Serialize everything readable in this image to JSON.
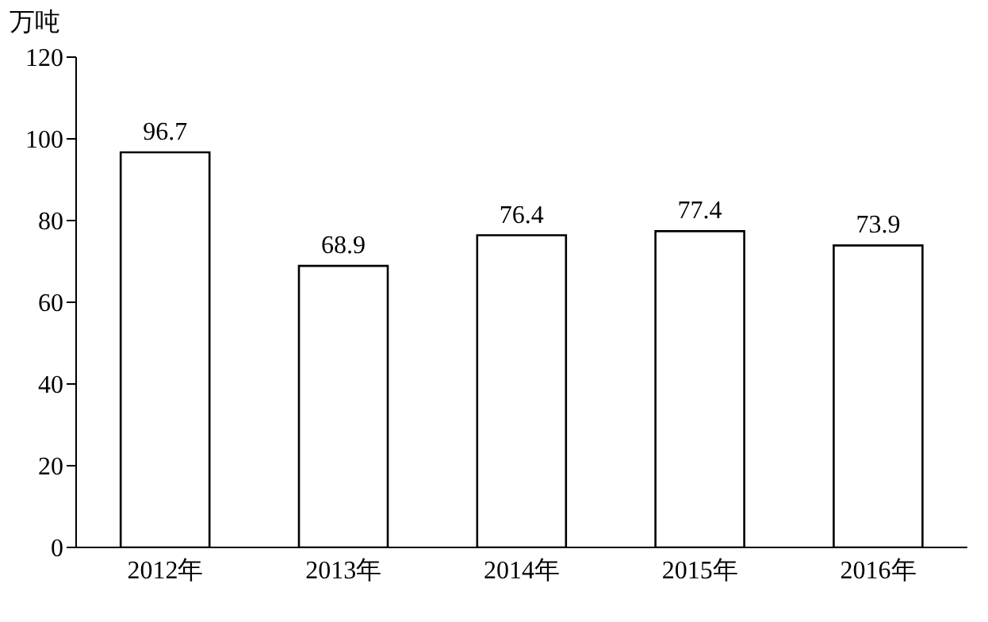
{
  "chart_data": {
    "type": "bar",
    "ylabel": "万吨",
    "categories": [
      "2012年",
      "2013年",
      "2014年",
      "2015年",
      "2016年"
    ],
    "values": [
      96.7,
      68.9,
      76.4,
      77.4,
      73.9
    ],
    "color": "#ffffff",
    "ylim": [
      0,
      120
    ],
    "yticks": [
      0,
      20,
      40,
      60,
      80,
      100,
      120
    ],
    "grid": false,
    "data_labels": true,
    "legend": false
  }
}
